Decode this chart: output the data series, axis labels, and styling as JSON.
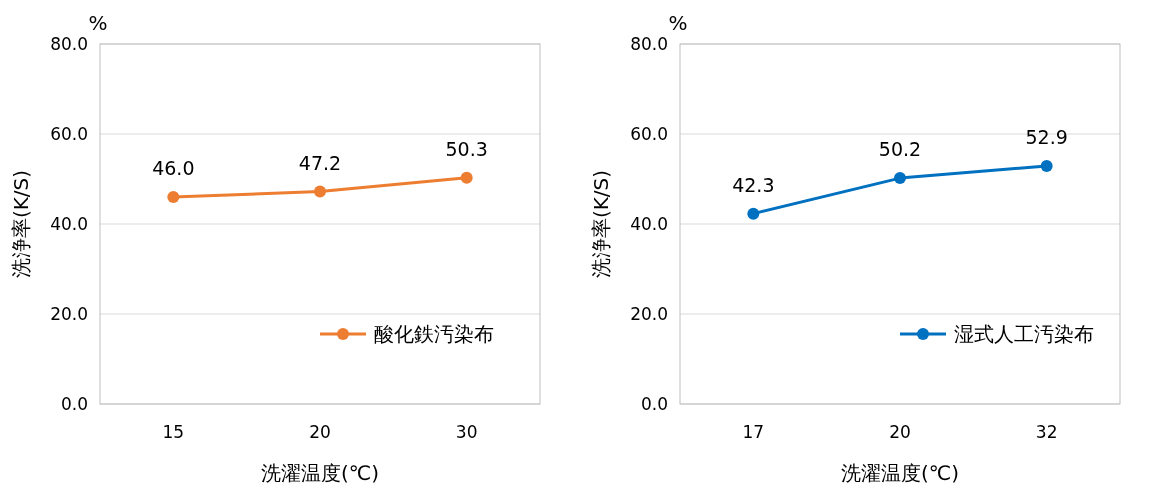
{
  "chart_data": [
    {
      "type": "line",
      "xlabel": "洗濯温度(℃)",
      "ylabel": "洗浄率(K/S)",
      "annotations": [
        "%"
      ],
      "categories": [
        "15",
        "20",
        "30"
      ],
      "series": [
        {
          "name": "酸化鉄汚染布",
          "color": "#ed7d31",
          "values": [
            46.0,
            47.2,
            50.3
          ],
          "value_labels": [
            "46.0",
            "47.2",
            "50.3"
          ]
        }
      ],
      "ylim": [
        0,
        80
      ],
      "yticks": [
        {
          "value": 0,
          "label": "0.0"
        },
        {
          "value": 20,
          "label": "20.0"
        },
        {
          "value": 40,
          "label": "40.0"
        },
        {
          "value": 60,
          "label": "60.0"
        },
        {
          "value": 80,
          "label": "80.0"
        }
      ],
      "grid": "y",
      "legend": "bottom right",
      "marker": "circle",
      "line_style": "solid"
    },
    {
      "type": "line",
      "xlabel": "洗濯温度(℃)",
      "ylabel": "洗浄率(K/S)",
      "annotations": [
        "%"
      ],
      "categories": [
        "17",
        "20",
        "32"
      ],
      "series": [
        {
          "name": "湿式人工汚染布",
          "color": "#0070c0",
          "values": [
            42.3,
            50.2,
            52.9
          ],
          "value_labels": [
            "42.3",
            "50.2",
            "52.9"
          ]
        }
      ],
      "ylim": [
        0,
        80
      ],
      "yticks": [
        {
          "value": 0,
          "label": "0.0"
        },
        {
          "value": 20,
          "label": "20.0"
        },
        {
          "value": 40,
          "label": "40.0"
        },
        {
          "value": 60,
          "label": "60.0"
        },
        {
          "value": 80,
          "label": "80.0"
        }
      ],
      "grid": "y",
      "legend": "bottom right",
      "marker": "circle",
      "line_style": "solid"
    }
  ]
}
